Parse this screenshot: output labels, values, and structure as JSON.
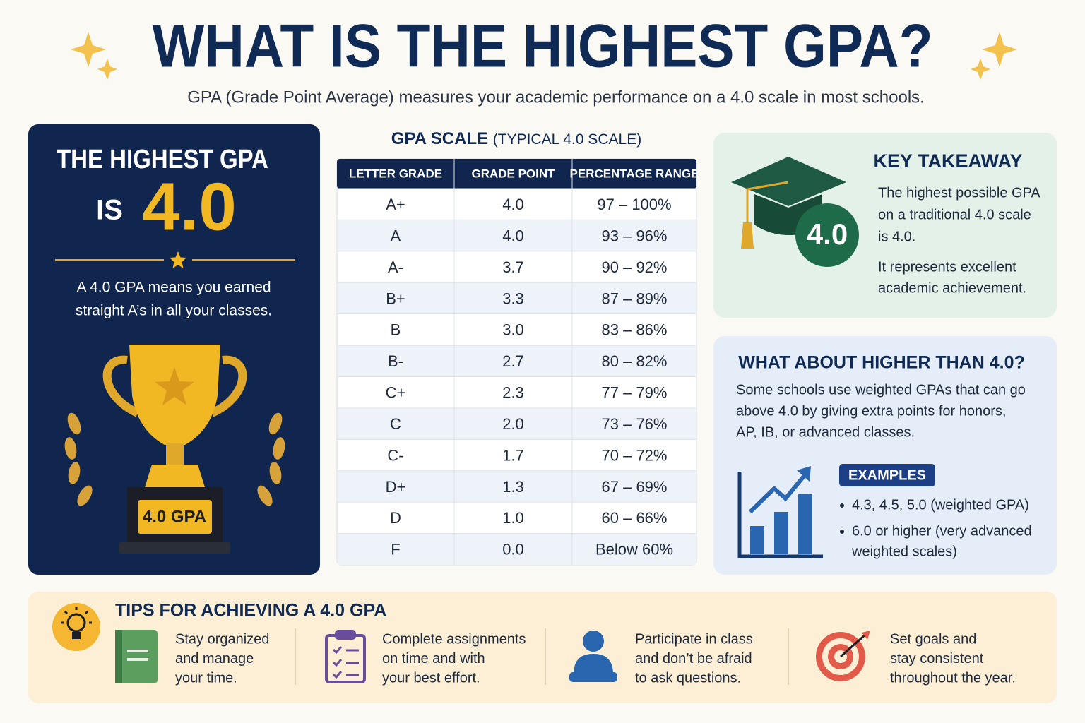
{
  "header": {
    "title": "WHAT IS THE HIGHEST GPA?",
    "subtitle": "GPA (Grade Point Average) measures your academic performance on a 4.0 scale in most schools."
  },
  "highest": {
    "title": "THE HIGHEST GPA",
    "is": "IS",
    "value": "4.0",
    "lines": [
      "A 4.0 GPA means you earned",
      "straight A’s in all your classes."
    ],
    "plaque": "4.0 GPA"
  },
  "table": {
    "title": "GPA SCALE",
    "title_note": "(TYPICAL 4.0 SCALE)",
    "columns": [
      "LETTER GRADE",
      "GRADE POINT",
      "PERCENTAGE RANGE"
    ],
    "rows": [
      [
        "A+",
        "4.0",
        "97 – 100%"
      ],
      [
        "A",
        "4.0",
        "93 – 96%"
      ],
      [
        "A-",
        "3.7",
        "90 – 92%"
      ],
      [
        "B+",
        "3.3",
        "87 – 89%"
      ],
      [
        "B",
        "3.0",
        "83 – 86%"
      ],
      [
        "B-",
        "2.7",
        "80 – 82%"
      ],
      [
        "C+",
        "2.3",
        "77 – 79%"
      ],
      [
        "C",
        "2.0",
        "73 – 76%"
      ],
      [
        "C-",
        "1.7",
        "70 – 72%"
      ],
      [
        "D+",
        "1.3",
        "67 – 69%"
      ],
      [
        "D",
        "1.0",
        "60 – 66%"
      ],
      [
        "F",
        "0.0",
        "Below 60%"
      ]
    ]
  },
  "takeaway": {
    "title": "KEY TAKEAWAY",
    "badge": "4.0",
    "paragraphs": [
      [
        "The highest possible GPA",
        "on a traditional 4.0 scale",
        "is 4.0."
      ],
      [
        "It represents excellent",
        "academic achievement."
      ]
    ]
  },
  "higher": {
    "title": "WHAT ABOUT HIGHER THAN 4.0?",
    "lines": [
      "Some schools use weighted GPAs that can go",
      "above 4.0 by giving extra points for honors,",
      "AP, IB, or advanced classes."
    ],
    "examples_label": "EXAMPLES",
    "examples": [
      [
        "4.3, 4.5, 5.0 (weighted GPA)"
      ],
      [
        "6.0 or higher (very advanced",
        "weighted scales)"
      ]
    ]
  },
  "tips": {
    "title": "TIPS FOR ACHIEVING A 4.0 GPA",
    "items": [
      [
        "Stay organized",
        "and manage",
        "your time."
      ],
      [
        "Complete assignments",
        "on time and with",
        "your best effort."
      ],
      [
        "Participate in class",
        "and don’t be afraid",
        "to ask questions."
      ],
      [
        "Set goals and",
        "stay consistent",
        "throughout the year."
      ]
    ]
  }
}
